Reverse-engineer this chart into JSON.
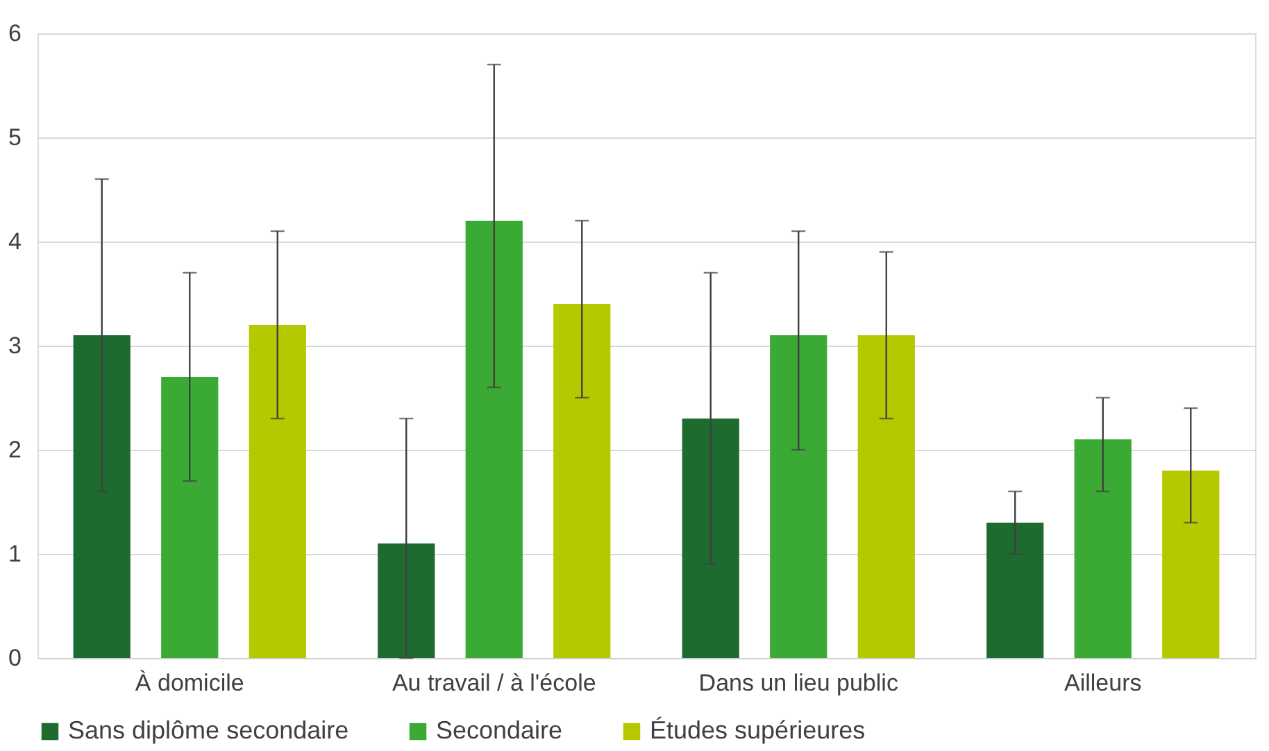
{
  "chart_data": {
    "type": "bar",
    "categories": [
      "À domicile",
      "Au travail / à l'école",
      "Dans un lieu public",
      "Ailleurs"
    ],
    "series": [
      {
        "name": "Sans diplôme secondaire",
        "color": "#1e6b30",
        "values": [
          3.1,
          1.1,
          2.3,
          1.3
        ],
        "errors": [
          [
            1.6,
            4.6
          ],
          [
            0,
            2.3
          ],
          [
            0.9,
            3.7
          ],
          [
            1.0,
            1.6
          ]
        ]
      },
      {
        "name": "Secondaire",
        "color": "#3aaa35",
        "values": [
          2.7,
          4.2,
          3.1,
          2.1
        ],
        "errors": [
          [
            1.7,
            3.7
          ],
          [
            2.6,
            5.7
          ],
          [
            2.0,
            4.1
          ],
          [
            1.6,
            2.5
          ]
        ]
      },
      {
        "name": "Études supérieures",
        "color": "#b5c800",
        "values": [
          3.2,
          3.4,
          3.1,
          1.8
        ],
        "errors": [
          [
            2.3,
            4.1
          ],
          [
            2.5,
            4.2
          ],
          [
            2.3,
            3.9
          ],
          [
            1.3,
            2.4
          ]
        ]
      }
    ],
    "ylim": [
      0,
      6
    ],
    "yticks": [
      0,
      1,
      2,
      3,
      4,
      5,
      6
    ],
    "grid": "y",
    "legend": "bottom"
  }
}
